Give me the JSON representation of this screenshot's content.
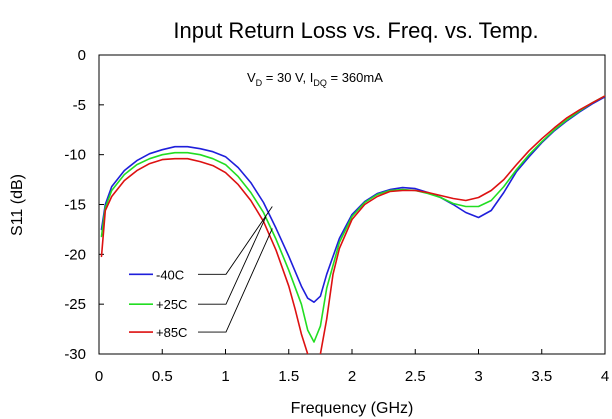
{
  "chart_data": {
    "type": "line",
    "title": "Input Return Loss vs. Freq. vs. Temp.",
    "xlabel": "Frequency (GHz)",
    "ylabel": "S11 (dB)",
    "xlim": [
      0,
      4
    ],
    "ylim": [
      -30,
      0
    ],
    "xticks": [
      "0",
      "0.5",
      "1",
      "1.5",
      "2",
      "2.5",
      "3",
      "3.5",
      "4"
    ],
    "yticks": [
      "0",
      "-5",
      "-10",
      "-15",
      "-20",
      "-25",
      "-30"
    ],
    "grid": false,
    "legend_position": "lower-left",
    "annotation": {
      "vd": "V",
      "vd_sub": "D",
      "vd_rest": " = 30 V, I",
      "idq_sub": "DQ",
      "idq_rest": " = 360mA"
    },
    "series": [
      {
        "name": "-40C",
        "color": "#1f1fdb",
        "x": [
          0.02,
          0.05,
          0.1,
          0.2,
          0.3,
          0.4,
          0.5,
          0.6,
          0.7,
          0.8,
          0.9,
          1.0,
          1.1,
          1.2,
          1.3,
          1.4,
          1.5,
          1.6,
          1.65,
          1.7,
          1.75,
          1.8,
          1.9,
          2.0,
          2.1,
          2.2,
          2.3,
          2.4,
          2.5,
          2.6,
          2.7,
          2.8,
          2.9,
          3.0,
          3.1,
          3.2,
          3.3,
          3.4,
          3.5,
          3.6,
          3.7,
          3.8,
          3.9,
          4.0
        ],
        "y": [
          -17.5,
          -15.0,
          -13.2,
          -11.6,
          -10.6,
          -9.9,
          -9.5,
          -9.2,
          -9.2,
          -9.4,
          -9.7,
          -10.2,
          -11.3,
          -12.8,
          -14.8,
          -17.4,
          -20.2,
          -23.2,
          -24.4,
          -24.8,
          -24.2,
          -22.0,
          -18.4,
          -16.0,
          -14.7,
          -13.9,
          -13.5,
          -13.3,
          -13.4,
          -13.8,
          -14.3,
          -15.0,
          -15.8,
          -16.3,
          -15.6,
          -13.8,
          -11.7,
          -10.2,
          -8.8,
          -7.6,
          -6.6,
          -5.7,
          -4.9,
          -4.2
        ]
      },
      {
        "name": "+25C",
        "color": "#22dd22",
        "x": [
          0.02,
          0.05,
          0.1,
          0.2,
          0.3,
          0.4,
          0.5,
          0.6,
          0.7,
          0.8,
          0.9,
          1.0,
          1.1,
          1.2,
          1.3,
          1.4,
          1.5,
          1.6,
          1.65,
          1.7,
          1.75,
          1.8,
          1.9,
          2.0,
          2.1,
          2.2,
          2.3,
          2.4,
          2.5,
          2.6,
          2.7,
          2.8,
          2.9,
          3.0,
          3.1,
          3.2,
          3.3,
          3.4,
          3.5,
          3.6,
          3.7,
          3.8,
          3.9,
          4.0
        ],
        "y": [
          -18.2,
          -15.3,
          -13.6,
          -12.0,
          -11.0,
          -10.4,
          -10.0,
          -9.8,
          -9.8,
          -10.0,
          -10.4,
          -11.0,
          -12.2,
          -13.8,
          -15.8,
          -18.5,
          -21.6,
          -25.0,
          -27.6,
          -28.8,
          -27.2,
          -23.4,
          -18.8,
          -16.2,
          -14.8,
          -14.0,
          -13.6,
          -13.5,
          -13.6,
          -13.9,
          -14.3,
          -14.9,
          -15.2,
          -15.2,
          -14.6,
          -13.2,
          -11.5,
          -10.0,
          -8.7,
          -7.5,
          -6.5,
          -5.6,
          -4.8,
          -4.1
        ]
      },
      {
        "name": "+85C",
        "color": "#dd1111",
        "x": [
          0.02,
          0.05,
          0.1,
          0.2,
          0.3,
          0.4,
          0.5,
          0.6,
          0.7,
          0.8,
          0.9,
          1.0,
          1.1,
          1.2,
          1.3,
          1.4,
          1.5,
          1.55,
          1.6,
          1.65,
          1.7,
          1.75,
          1.8,
          1.85,
          1.9,
          2.0,
          2.1,
          2.2,
          2.3,
          2.4,
          2.5,
          2.6,
          2.7,
          2.8,
          2.9,
          3.0,
          3.1,
          3.2,
          3.3,
          3.4,
          3.5,
          3.6,
          3.7,
          3.8,
          3.9,
          4.0
        ],
        "y": [
          -20.2,
          -15.6,
          -14.2,
          -12.6,
          -11.6,
          -10.9,
          -10.5,
          -10.4,
          -10.4,
          -10.7,
          -11.1,
          -11.8,
          -13.0,
          -14.6,
          -16.7,
          -19.6,
          -23.2,
          -25.5,
          -28.0,
          -30.0,
          -31.0,
          -30.0,
          -26.5,
          -22.0,
          -19.4,
          -16.5,
          -15.0,
          -14.2,
          -13.7,
          -13.6,
          -13.6,
          -13.8,
          -14.1,
          -14.4,
          -14.6,
          -14.3,
          -13.6,
          -12.5,
          -11.0,
          -9.6,
          -8.4,
          -7.3,
          -6.3,
          -5.5,
          -4.8,
          -4.1
        ]
      }
    ]
  }
}
